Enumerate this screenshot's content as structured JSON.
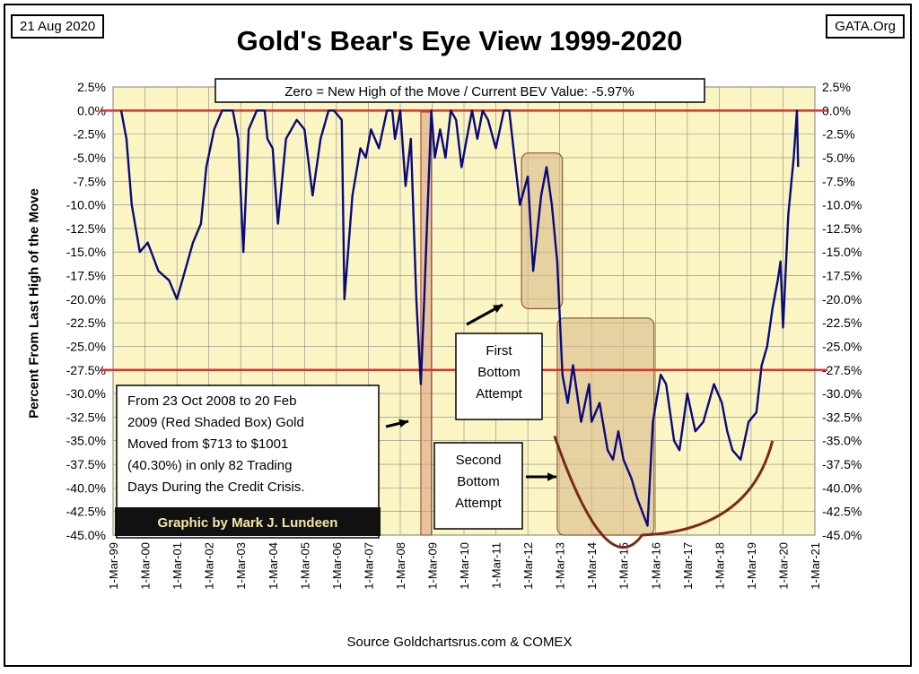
{
  "header": {
    "date_label": "21 Aug 2020",
    "org_label": "GATA.Org",
    "title": "Gold's Bear's Eye View 1999-2020"
  },
  "footer": {
    "source": "Source  Goldchartsrus.com & COMEX"
  },
  "annotations": {
    "zero_note": "Zero = New High of the Move / Current  BEV Value:  -5.97%",
    "first_bottom": [
      "First",
      "Bottom",
      "Attempt"
    ],
    "second_bottom": [
      "Second",
      "Bottom",
      "Attempt"
    ],
    "crisis_note": [
      "From  23 Oct 2008 to 20 Feb",
      "2009 (Red Shaded Box)  Gold",
      "Moved from $713 to $1001",
      "(40.30%) in only 82 Trading",
      "Days During the Credit Crisis."
    ],
    "credit": "Graphic by Mark J. Lundeen"
  },
  "colors": {
    "plot_bg": "#fbf5c3",
    "series": "#0a0a7a",
    "reference_line": "#e0302b",
    "highlight_box": "#d9b98a",
    "curve": "#7b2a1a",
    "credit_bg": "#111111",
    "credit_text": "#f5e7a6"
  },
  "chart_data": {
    "type": "line",
    "title": "Gold's Bear's Eye View 1999-2020",
    "ylabel": "Percent  From Last High of the Move",
    "xlabel": "",
    "ylim": [
      -45,
      2.5
    ],
    "xlim": [
      "1999-03-01",
      "2021-03-01"
    ],
    "y_ticks": [
      "2.5%",
      "0.0%",
      "-2.5%",
      "-5.0%",
      "-7.5%",
      "-10.0%",
      "-12.5%",
      "-15.0%",
      "-17.5%",
      "-20.0%",
      "-22.5%",
      "-25.0%",
      "-27.5%",
      "-30.0%",
      "-32.5%",
      "-35.0%",
      "-37.5%",
      "-40.0%",
      "-42.5%",
      "-45.0%"
    ],
    "x_ticks": [
      "1-Mar-99",
      "1-Mar-00",
      "1-Mar-01",
      "1-Mar-02",
      "1-Mar-03",
      "1-Mar-04",
      "1-Mar-05",
      "1-Mar-06",
      "1-Mar-07",
      "1-Mar-08",
      "1-Mar-09",
      "1-Mar-10",
      "1-Mar-11",
      "1-Mar-12",
      "1-Mar-13",
      "1-Mar-14",
      "1-Mar-15",
      "1-Mar-16",
      "1-Mar-17",
      "1-Mar-18",
      "1-Mar-19",
      "1-Mar-20",
      "1-Mar-21"
    ],
    "grid": true,
    "reference_lines": [
      0,
      -27.5
    ],
    "series": [
      {
        "x": [
          "1999-06-01",
          "1999-08-01",
          "1999-10-01",
          "2000-01-01",
          "2000-04-01",
          "2000-08-01",
          "2000-12-01",
          "2001-03-01",
          "2001-06-01",
          "2001-09-01",
          "2001-12-01",
          "2002-02-01",
          "2002-05-01",
          "2002-08-01",
          "2002-12-01",
          "2003-02-01",
          "2003-04-01",
          "2003-06-01",
          "2003-09-01",
          "2003-12-01",
          "2004-01-01",
          "2004-03-01",
          "2004-05-01",
          "2004-08-01",
          "2004-12-01",
          "2005-03-01",
          "2005-06-01",
          "2005-09-01",
          "2005-12-01",
          "2006-02-01",
          "2006-05-01",
          "2006-06-01",
          "2006-09-01",
          "2006-12-01",
          "2007-02-01",
          "2007-04-01",
          "2007-07-01",
          "2007-10-01",
          "2007-12-01",
          "2008-01-01",
          "2008-03-01",
          "2008-05-01",
          "2008-07-01",
          "2008-09-01",
          "2008-10-23",
          "2008-12-01",
          "2009-02-20",
          "2009-04-01",
          "2009-06-01",
          "2009-08-01",
          "2009-10-01",
          "2009-12-01",
          "2010-02-01",
          "2010-04-01",
          "2010-06-01",
          "2010-08-01",
          "2010-10-01",
          "2010-12-01",
          "2011-03-01",
          "2011-06-01",
          "2011-08-01",
          "2011-10-01",
          "2011-12-01",
          "2012-03-01",
          "2012-05-01",
          "2012-08-01",
          "2012-10-01",
          "2012-12-01",
          "2013-02-01",
          "2013-04-01",
          "2013-06-01",
          "2013-08-01",
          "2013-11-01",
          "2014-02-01",
          "2014-03-01",
          "2014-06-01",
          "2014-09-01",
          "2014-11-01",
          "2015-01-01",
          "2015-03-01",
          "2015-06-01",
          "2015-08-01",
          "2015-12-01",
          "2016-02-01",
          "2016-05-01",
          "2016-07-01",
          "2016-10-01",
          "2016-12-01",
          "2017-03-01",
          "2017-06-01",
          "2017-09-01",
          "2017-12-01",
          "2018-01-01",
          "2018-04-01",
          "2018-06-01",
          "2018-08-01",
          "2018-11-01",
          "2019-02-01",
          "2019-05-01",
          "2019-07-01",
          "2019-09-01",
          "2019-11-01",
          "2020-01-01",
          "2020-02-01",
          "2020-03-01",
          "2020-05-01",
          "2020-07-01",
          "2020-08-07",
          "2020-08-21"
        ],
        "y": [
          0,
          -3,
          -10,
          -15,
          -14,
          -17,
          -18,
          -20,
          -17,
          -14,
          -12,
          -6,
          -2,
          0,
          0,
          -3,
          -15,
          -2,
          0,
          0,
          -3,
          -4,
          -12,
          -3,
          -1,
          -2,
          -9,
          -3,
          0,
          0,
          -1,
          -20,
          -9,
          -4,
          -5,
          -2,
          -4,
          0,
          0,
          -3,
          0,
          -8,
          -3,
          -20,
          -29,
          -20,
          0,
          -5,
          -2,
          -5,
          0,
          -1,
          -6,
          -3,
          0,
          -3,
          0,
          -1,
          -4,
          0,
          0,
          -5,
          -10,
          -7,
          -17,
          -9,
          -6,
          -10,
          -16,
          -28,
          -31,
          -27,
          -33,
          -29,
          -33,
          -31,
          -36,
          -37,
          -34,
          -37,
          -39,
          -41,
          -44,
          -33,
          -28,
          -29,
          -35,
          -36,
          -30,
          -34,
          -33,
          -30,
          -29,
          -31,
          -34,
          -36,
          -37,
          -33,
          -32,
          -27,
          -25,
          -21,
          -18,
          -16,
          -23,
          -11,
          -5,
          0,
          -5.97
        ]
      }
    ]
  }
}
